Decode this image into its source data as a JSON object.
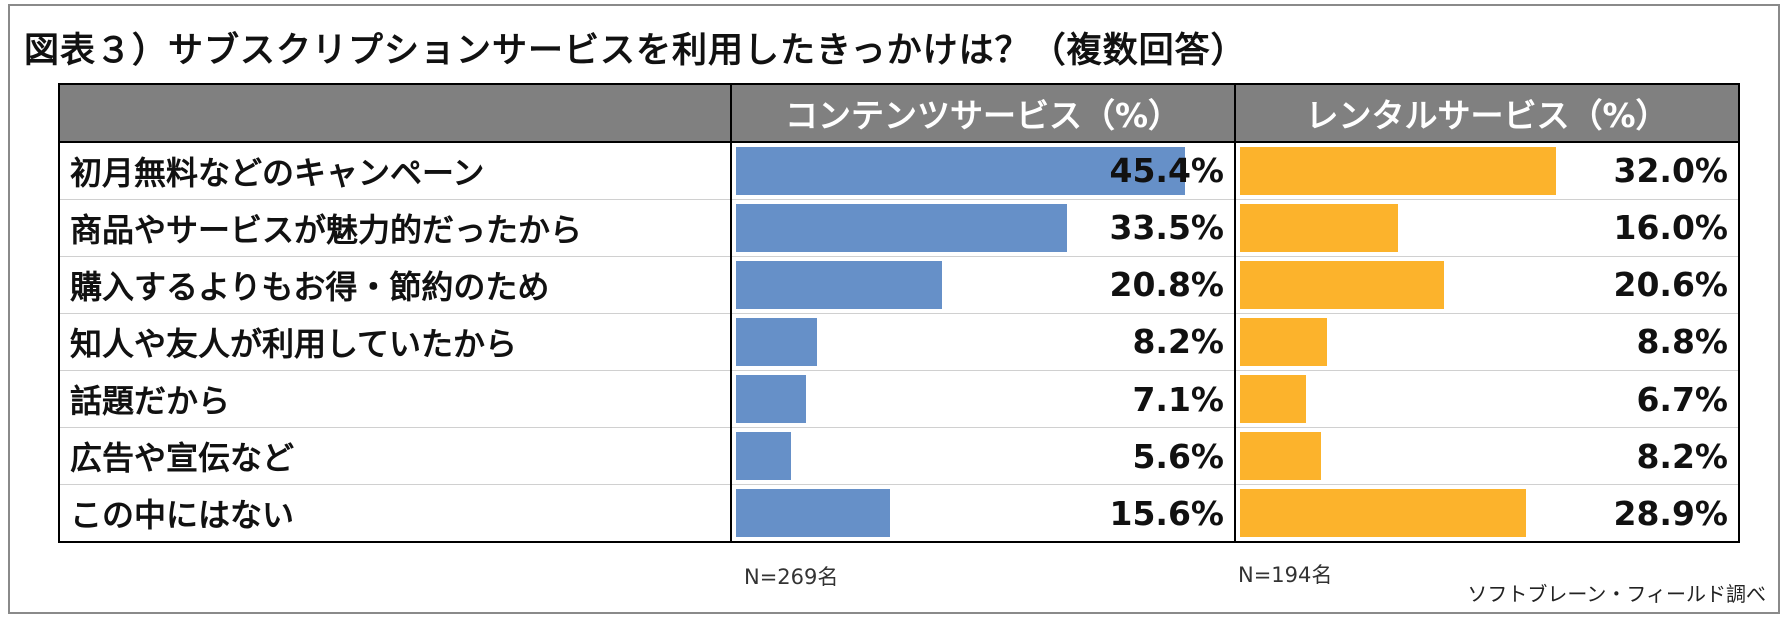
{
  "title": "図表３）サブスクリプションサービスを利用したきっかけは？（複数回答）",
  "chart_data": {
    "type": "bar",
    "orientation": "horizontal",
    "title": "図表３）サブスクリプションサービスを利用したきっかけは？（複数回答）",
    "categories": [
      "初月無料などのキャンペーン",
      "商品やサービスが魅力的だったから",
      "購入するよりもお得・節約のため",
      "知人や友人が利用していたから",
      "話題だから",
      "広告や宣伝など",
      "この中にはない"
    ],
    "series": [
      {
        "name": "コンテンツサービス（%）",
        "values": [
          45.4,
          33.5,
          20.8,
          8.2,
          7.1,
          5.6,
          15.6
        ],
        "labels": [
          "45.4%",
          "33.5%",
          "20.8%",
          "8.2%",
          "7.1%",
          "5.6%",
          "15.6%"
        ],
        "color": "#6690c8",
        "n_label": "N=269名"
      },
      {
        "name": "レンタルサービス（%）",
        "values": [
          32.0,
          16.0,
          20.6,
          8.8,
          6.7,
          8.2,
          28.9
        ],
        "labels": [
          "32.0%",
          "16.0%",
          "20.6%",
          "8.8%",
          "6.7%",
          "8.2%",
          "28.9%"
        ],
        "color": "#fcb32c",
        "n_label": "N=194名"
      }
    ],
    "xlim": [
      0,
      50
    ],
    "source": "ソフトブレーン・フィールド調べ"
  }
}
